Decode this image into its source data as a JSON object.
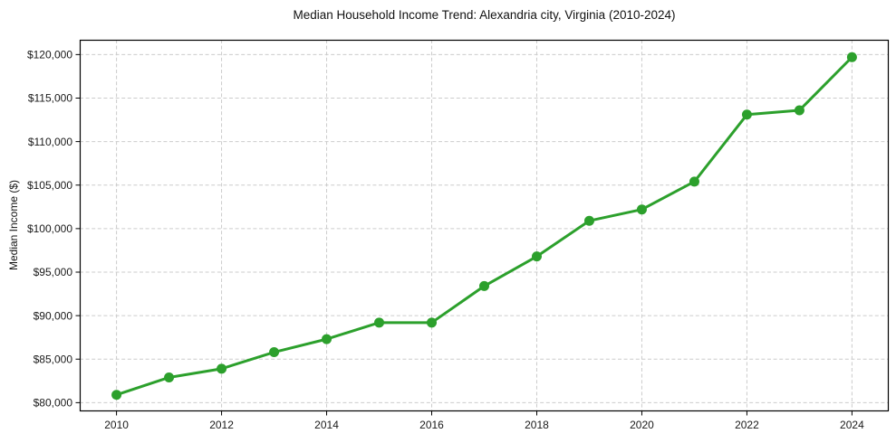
{
  "page": {
    "background": "#ffffff"
  },
  "chart_data": {
    "type": "line",
    "title": "Median Household Income Trend: Alexandria city, Virginia (2010-2024)",
    "xlabel": "",
    "ylabel": "Median Income ($)",
    "x": [
      2010,
      2011,
      2012,
      2013,
      2014,
      2015,
      2016,
      2017,
      2018,
      2019,
      2020,
      2021,
      2022,
      2023,
      2024
    ],
    "series": [
      {
        "name": "Median Household Income",
        "color": "#2ca02c",
        "values": [
          80900,
          82900,
          83900,
          85800,
          87300,
          89200,
          89200,
          93400,
          96800,
          100900,
          102200,
          105400,
          113100,
          113600,
          119700
        ]
      }
    ],
    "xlim": [
      2009.3,
      2024.7
    ],
    "ylim": [
      79000,
      121700
    ],
    "xticks": [
      2010,
      2012,
      2014,
      2016,
      2018,
      2020,
      2022,
      2024
    ],
    "xtick_labels": [
      "2010",
      "2012",
      "2014",
      "2016",
      "2018",
      "2020",
      "2022",
      "2024"
    ],
    "yticks": [
      80000,
      85000,
      90000,
      95000,
      100000,
      105000,
      110000,
      115000,
      120000
    ],
    "ytick_labels": [
      "$80,000",
      "$85,000",
      "$90,000",
      "$95,000",
      "$100,000",
      "$105,000",
      "$110,000",
      "$115,000",
      "$120,000"
    ],
    "grid": true,
    "grid_style": "dashed",
    "grid_color": "#cccccc",
    "axis_color": "#000000",
    "text_color": "#1a1a1a",
    "marker": "circle",
    "marker_size": 5.5,
    "line_width": 3,
    "legend_position": "none"
  }
}
